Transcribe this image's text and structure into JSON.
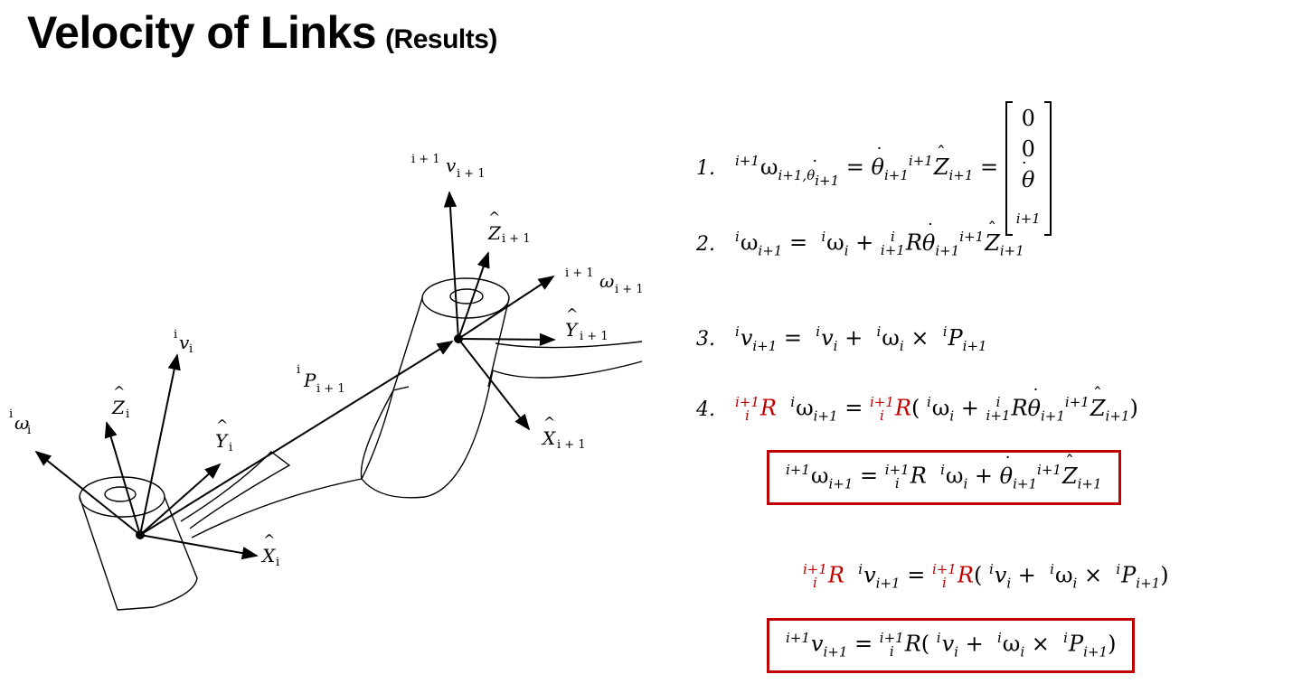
{
  "slide": {
    "title": "Velocity of Links",
    "subtitle": "(Results)"
  },
  "figure_labels": {
    "v_next": "i + 1",
    "v_next_sym": "v",
    "v_next_sub": "i + 1",
    "z_next": "Z",
    "z_next_sub": "i + 1",
    "w_next": "i + 1",
    "w_next_sym": "ω",
    "w_next_sub": "i + 1",
    "y_next": "Y",
    "y_next_sub": "i + 1",
    "x_next": "X",
    "x_next_sub": "i + 1",
    "p": "P",
    "p_pre": "i",
    "p_sub": "i + 1",
    "v_i_pre": "i",
    "v_i": "v",
    "v_i_sub": "i",
    "z_i": "Z",
    "z_i_sub": "i",
    "w_i_pre": "i",
    "w_i": "ω",
    "w_i_sub": "i",
    "y_i": "Y",
    "y_i_sub": "i",
    "x_i": "X",
    "x_i_sub": "i"
  },
  "equations": {
    "n1": "1.",
    "n2": "2.",
    "n3": "3.",
    "n4": "4."
  },
  "colors": {
    "accent": "#c00000"
  }
}
